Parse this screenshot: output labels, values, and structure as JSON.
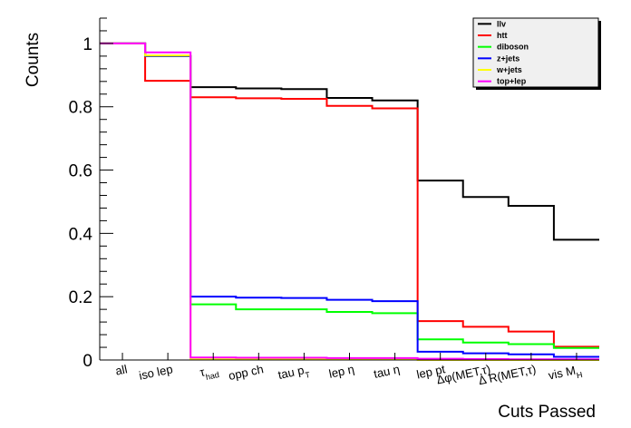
{
  "chart_data": {
    "type": "line",
    "style": "step-histogram",
    "xlabel": "Cuts Passed",
    "ylabel": "Counts",
    "ylim": [
      0,
      1.08
    ],
    "yticks": [
      "0",
      "0.2",
      "0.4",
      "0.6",
      "0.8",
      "1"
    ],
    "categories": [
      "all",
      "iso lep",
      "τ_had",
      "opp ch",
      "tau p_T",
      "lep η",
      "tau η",
      "lep pt",
      "Δφ(MET,τ)",
      "Δ R(MET,τ)",
      "vis M_H"
    ],
    "category_labels": [
      {
        "main": "all"
      },
      {
        "main": "iso lep"
      },
      {
        "main": "τ",
        "sub": "had"
      },
      {
        "main": "opp ch"
      },
      {
        "main": "tau p",
        "sub": "T"
      },
      {
        "main": "lep  η"
      },
      {
        "main": "tau  η"
      },
      {
        "main": "lep pt"
      },
      {
        "main": "Δφ(MET,τ)"
      },
      {
        "main": "Δ R(MET,τ)"
      },
      {
        "main": "vis M",
        "sub": "H"
      }
    ],
    "legend_position": "top-right",
    "grid": false,
    "series": [
      {
        "name": "llv",
        "color": "#000000",
        "values": [
          1.0,
          0.96,
          0.862,
          0.858,
          0.856,
          0.828,
          0.82,
          0.567,
          0.515,
          0.487,
          0.38
        ]
      },
      {
        "name": "htt",
        "color": "#ff0000",
        "values": [
          1.0,
          0.882,
          0.83,
          0.827,
          0.825,
          0.803,
          0.795,
          0.123,
          0.105,
          0.09,
          0.042
        ]
      },
      {
        "name": "diboson",
        "color": "#00ff00",
        "values": [
          1.0,
          0.96,
          0.176,
          0.16,
          0.16,
          0.152,
          0.148,
          0.065,
          0.055,
          0.05,
          0.038
        ]
      },
      {
        "name": "z+jets",
        "color": "#0000ff",
        "values": [
          1.0,
          0.96,
          0.2,
          0.197,
          0.196,
          0.19,
          0.186,
          0.026,
          0.021,
          0.018,
          0.01
        ]
      },
      {
        "name": "w+jets",
        "color": "#ffff00",
        "values": [
          1.0,
          0.962,
          0.002,
          0.002,
          0.002,
          0.002,
          0.002,
          0.0,
          0.0,
          0.0,
          0.0
        ]
      },
      {
        "name": "top+lep",
        "color": "#ff00ff",
        "values": [
          1.0,
          0.972,
          0.008,
          0.007,
          0.007,
          0.006,
          0.006,
          0.004,
          0.003,
          0.002,
          0.002
        ]
      }
    ]
  }
}
